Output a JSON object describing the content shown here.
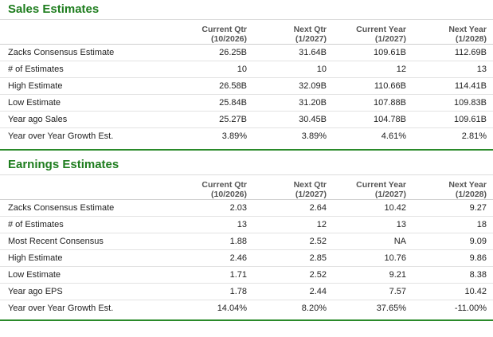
{
  "sales": {
    "title": "Sales Estimates",
    "headers": [
      {
        "line1": "Current Qtr",
        "line2": "(10/2026)"
      },
      {
        "line1": "Next Qtr",
        "line2": "(1/2027)"
      },
      {
        "line1": "Current Year",
        "line2": "(1/2027)"
      },
      {
        "line1": "Next Year",
        "line2": "(1/2028)"
      }
    ],
    "rows": [
      {
        "label": "Zacks Consensus Estimate",
        "values": [
          "26.25B",
          "31.64B",
          "109.61B",
          "112.69B"
        ]
      },
      {
        "label": "# of Estimates",
        "values": [
          "10",
          "10",
          "12",
          "13"
        ]
      },
      {
        "label": "High Estimate",
        "values": [
          "26.58B",
          "32.09B",
          "110.66B",
          "114.41B"
        ]
      },
      {
        "label": "Low Estimate",
        "values": [
          "25.84B",
          "31.20B",
          "107.88B",
          "109.83B"
        ]
      },
      {
        "label": "Year ago Sales",
        "values": [
          "25.27B",
          "30.45B",
          "104.78B",
          "109.61B"
        ]
      },
      {
        "label": "Year over Year Growth Est.",
        "values": [
          "3.89%",
          "3.89%",
          "4.61%",
          "2.81%"
        ]
      }
    ]
  },
  "earnings": {
    "title": "Earnings Estimates",
    "headers": [
      {
        "line1": "Current Qtr",
        "line2": "(10/2026)"
      },
      {
        "line1": "Next Qtr",
        "line2": "(1/2027)"
      },
      {
        "line1": "Current Year",
        "line2": "(1/2027)"
      },
      {
        "line1": "Next Year",
        "line2": "(1/2028)"
      }
    ],
    "rows": [
      {
        "label": "Zacks Consensus Estimate",
        "values": [
          "2.03",
          "2.64",
          "10.42",
          "9.27"
        ]
      },
      {
        "label": "# of Estimates",
        "values": [
          "13",
          "12",
          "13",
          "18"
        ]
      },
      {
        "label": "Most Recent Consensus",
        "values": [
          "1.88",
          "2.52",
          "NA",
          "9.09"
        ]
      },
      {
        "label": "High Estimate",
        "values": [
          "2.46",
          "2.85",
          "10.76",
          "9.86"
        ]
      },
      {
        "label": "Low Estimate",
        "values": [
          "1.71",
          "2.52",
          "9.21",
          "8.38"
        ]
      },
      {
        "label": "Year ago EPS",
        "values": [
          "1.78",
          "2.44",
          "7.57",
          "10.42"
        ]
      },
      {
        "label": "Year over Year Growth Est.",
        "values": [
          "14.04%",
          "8.20%",
          "37.65%",
          "-11.00%"
        ]
      }
    ]
  },
  "colors": {
    "accent": "#1e7d1e",
    "bar": "#2a8a2a"
  }
}
